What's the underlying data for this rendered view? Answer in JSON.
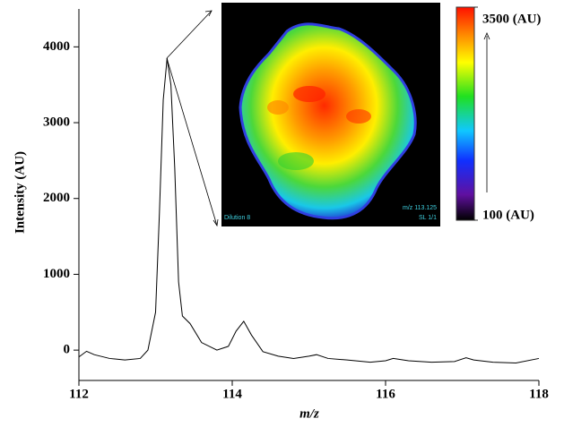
{
  "chart_data": {
    "type": "line",
    "x_label": "m/z",
    "y_label": "Intensity (AU)",
    "x": [
      112.0,
      112.1,
      112.2,
      112.4,
      112.6,
      112.8,
      112.9,
      113.0,
      113.05,
      113.1,
      113.15,
      113.2,
      113.25,
      113.3,
      113.35,
      113.45,
      113.6,
      113.8,
      113.95,
      114.05,
      114.15,
      114.25,
      114.4,
      114.6,
      114.8,
      115.0,
      115.1,
      115.25,
      115.5,
      115.8,
      116.0,
      116.1,
      116.3,
      116.6,
      116.9,
      117.05,
      117.15,
      117.4,
      117.7,
      118.0
    ],
    "values": [
      -90,
      -15,
      -60,
      -110,
      -130,
      -110,
      0,
      500,
      1800,
      3300,
      3850,
      3500,
      2400,
      900,
      450,
      350,
      100,
      0,
      50,
      250,
      380,
      200,
      -20,
      -80,
      -110,
      -80,
      -60,
      -110,
      -130,
      -160,
      -140,
      -110,
      -140,
      -160,
      -150,
      -100,
      -130,
      -160,
      -170,
      -110
    ],
    "color": "#000000",
    "xlim": [
      112,
      118
    ],
    "xticks": [
      112,
      114,
      116,
      118
    ],
    "ylim": [
      -400,
      4500
    ],
    "yticks": [
      0,
      1000,
      2000,
      3000,
      4000
    ],
    "inset": {
      "left_note": "Dilution 8",
      "right_notes": [
        "m/z 113.125",
        "SL 1/1"
      ]
    },
    "colorbar": {
      "range": [
        100,
        3500
      ],
      "ticks": [
        {
          "value": 100,
          "label": "100 (AU)"
        },
        {
          "value": 3500,
          "label": "3500 (AU)"
        }
      ]
    }
  }
}
